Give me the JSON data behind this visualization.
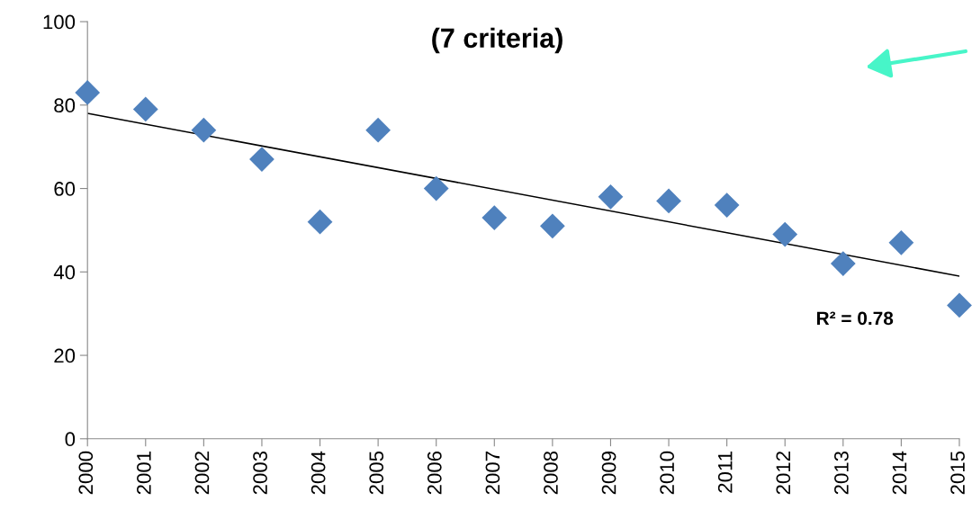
{
  "chart_data": {
    "type": "scatter",
    "title": "(7 criteria)",
    "x": [
      2000,
      2001,
      2002,
      2003,
      2004,
      2005,
      2006,
      2007,
      2008,
      2009,
      2010,
      2011,
      2012,
      2013,
      2014,
      2015
    ],
    "series": [
      {
        "color": "#4f81bd",
        "marker": "diamond",
        "values": [
          83,
          79,
          74,
          67,
          52,
          74,
          60,
          53,
          51,
          58,
          57,
          56,
          49,
          42,
          47,
          32
        ]
      },
      {
        "type": "line",
        "color": "#000000",
        "marker": "none",
        "line_style": "solid",
        "x": [
          2000,
          2015
        ],
        "values": [
          78,
          39
        ]
      }
    ],
    "annotations": [
      "R² = 0.78"
    ],
    "xlim": [
      2000,
      2015
    ],
    "xticks": [
      2000,
      2001,
      2002,
      2003,
      2004,
      2005,
      2006,
      2007,
      2008,
      2009,
      2010,
      2011,
      2012,
      2013,
      2014,
      2015
    ],
    "ylim": [
      0,
      100
    ],
    "yticks": [
      0,
      20,
      40,
      60,
      80,
      100
    ],
    "grid": false
  }
}
